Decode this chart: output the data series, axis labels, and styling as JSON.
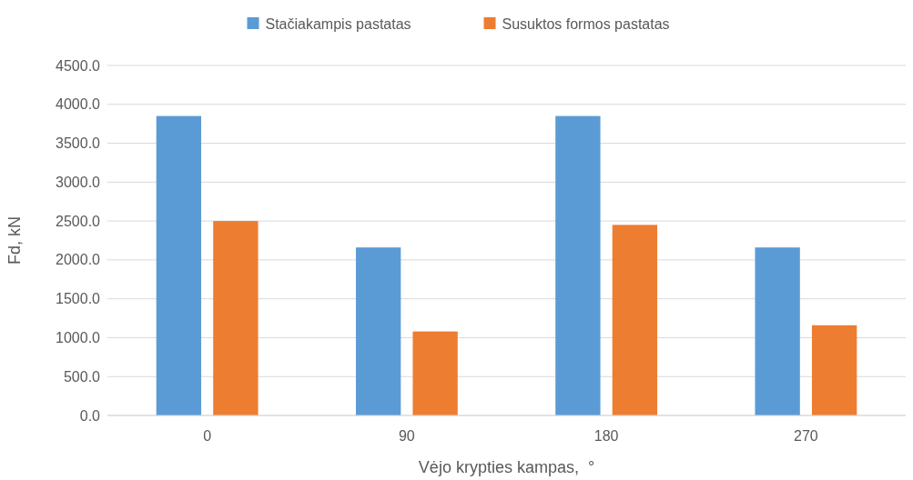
{
  "chart_data": {
    "type": "bar",
    "xlabel": "Vėjo krypties kampas,  °",
    "ylabel": "Fd, kN",
    "categories": [
      "0",
      "90",
      "180",
      "270"
    ],
    "series": [
      {
        "name": "Stačiakampis pastatas",
        "color": "#5b9bd5",
        "values": [
          3850,
          2160,
          3850,
          2160
        ]
      },
      {
        "name": "Susuktos formos pastatas",
        "color": "#ed7d31",
        "values": [
          2500,
          1080,
          2450,
          1160
        ]
      }
    ],
    "ylim": [
      0,
      4500
    ],
    "yticks": [
      {
        "value": 0,
        "label": "0.0"
      },
      {
        "value": 500,
        "label": "500.0"
      },
      {
        "value": 1000,
        "label": "1000.0"
      },
      {
        "value": 1500,
        "label": "1500.0"
      },
      {
        "value": 2000,
        "label": "2000.0"
      },
      {
        "value": 2500,
        "label": "2500.0"
      },
      {
        "value": 3000,
        "label": "3000.0"
      },
      {
        "value": 3500,
        "label": "3500.0"
      },
      {
        "value": 4000,
        "label": "4000.0"
      },
      {
        "value": 4500,
        "label": "4500.0"
      }
    ],
    "grid": "y",
    "legend": "top"
  }
}
